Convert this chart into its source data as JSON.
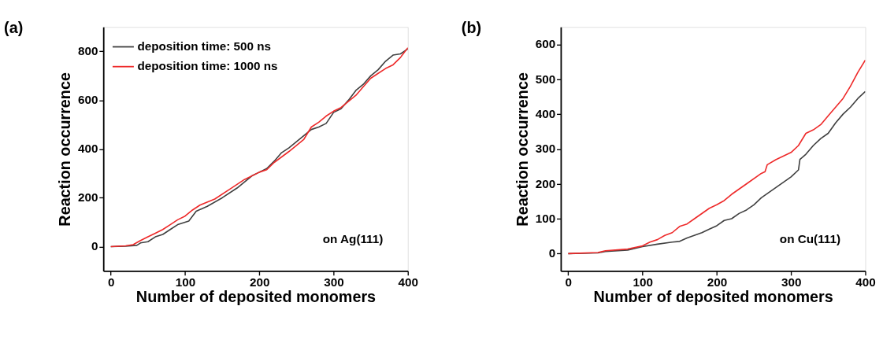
{
  "chart_data": [
    {
      "type": "line",
      "title": "(a)",
      "xlabel": "Number of deposited monomers",
      "ylabel": "Reaction occurrence",
      "xlim": [
        -10,
        400
      ],
      "ylim": [
        -100,
        900
      ],
      "xticks": [
        0,
        100,
        200,
        300,
        400
      ],
      "yticks": [
        0,
        200,
        400,
        600,
        800
      ],
      "grid": false,
      "legend": "top left",
      "line_style": "solid",
      "annotations": [
        "on Ag(111)"
      ],
      "series": [
        {
          "name": "deposition time: 500 ns",
          "color": "#404040",
          "x": [
            0,
            20,
            35,
            40,
            50,
            60,
            70,
            80,
            90,
            100,
            105,
            115,
            130,
            150,
            170,
            190,
            200,
            210,
            220,
            230,
            240,
            250,
            260,
            270,
            280,
            290,
            300,
            310,
            320,
            330,
            340,
            350,
            360,
            370,
            380,
            390,
            400
          ],
          "values": [
            0,
            2,
            5,
            15,
            20,
            40,
            50,
            70,
            90,
            100,
            105,
            145,
            165,
            200,
            240,
            290,
            305,
            320,
            350,
            385,
            405,
            430,
            455,
            480,
            490,
            505,
            550,
            565,
            600,
            640,
            665,
            700,
            725,
            760,
            785,
            790,
            810
          ]
        },
        {
          "name": "deposition time: 1000 ns",
          "color": "#ee2a2a",
          "x": [
            0,
            20,
            30,
            40,
            50,
            60,
            70,
            80,
            90,
            100,
            110,
            120,
            140,
            160,
            180,
            200,
            210,
            220,
            240,
            260,
            270,
            280,
            290,
            300,
            310,
            320,
            330,
            340,
            350,
            360,
            370,
            380,
            390,
            400
          ],
          "values": [
            0,
            3,
            8,
            25,
            40,
            55,
            70,
            90,
            110,
            125,
            150,
            170,
            195,
            235,
            275,
            305,
            315,
            345,
            390,
            440,
            490,
            510,
            535,
            555,
            570,
            595,
            620,
            655,
            690,
            710,
            730,
            745,
            775,
            815
          ]
        }
      ]
    },
    {
      "type": "line",
      "title": "(b)",
      "xlabel": "Number of deposited monomers",
      "ylabel": "Reaction occurrence",
      "xlim": [
        -10,
        400
      ],
      "ylim": [
        -50,
        650
      ],
      "xticks": [
        0,
        100,
        200,
        300,
        400
      ],
      "yticks": [
        0,
        100,
        200,
        300,
        400,
        500,
        600
      ],
      "grid": false,
      "legend": "top left",
      "line_style": "solid",
      "annotations": [
        "on Cu(111)"
      ],
      "series": [
        {
          "name": "deposition time: 500 ns",
          "color": "#404040",
          "x": [
            0,
            40,
            50,
            80,
            100,
            120,
            140,
            150,
            160,
            180,
            190,
            200,
            210,
            220,
            230,
            240,
            250,
            260,
            280,
            300,
            310,
            312,
            320,
            330,
            340,
            350,
            360,
            370,
            380,
            390,
            400
          ],
          "values": [
            0,
            2,
            6,
            10,
            20,
            27,
            33,
            35,
            45,
            60,
            70,
            80,
            95,
            100,
            115,
            125,
            140,
            160,
            190,
            220,
            240,
            270,
            285,
            310,
            330,
            345,
            375,
            400,
            420,
            445,
            465
          ]
        },
        {
          "name": "deposition time: 1000 ns",
          "color": "#ee2a2a",
          "x": [
            0,
            40,
            50,
            80,
            100,
            110,
            120,
            130,
            140,
            150,
            160,
            170,
            190,
            200,
            210,
            220,
            240,
            260,
            265,
            268,
            280,
            290,
            300,
            310,
            320,
            330,
            340,
            350,
            360,
            370,
            380,
            390,
            400
          ],
          "values": [
            0,
            3,
            8,
            13,
            22,
            33,
            40,
            52,
            60,
            78,
            85,
            100,
            130,
            140,
            152,
            170,
            200,
            230,
            235,
            255,
            270,
            280,
            290,
            310,
            345,
            355,
            370,
            395,
            420,
            445,
            480,
            520,
            555
          ]
        }
      ]
    }
  ]
}
